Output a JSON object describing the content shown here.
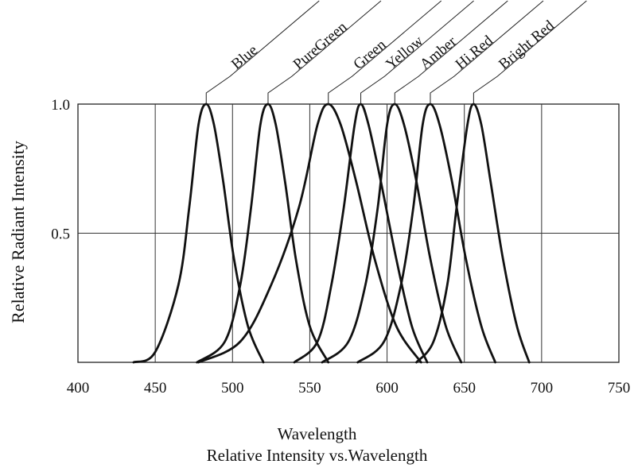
{
  "chart_data": {
    "type": "line",
    "xlabel": "Wavelength",
    "subtitle": "Relative Intensity vs.Wavelength",
    "ylabel": "Relative Radiant Intensity",
    "xlim": [
      400,
      750
    ],
    "ylim": [
      0,
      1.0
    ],
    "x_ticks": [
      400,
      450,
      500,
      550,
      600,
      650,
      700,
      750
    ],
    "y_ticks": [
      0.5,
      1.0
    ],
    "y_tick_labels": [
      "0.5",
      "1.0"
    ],
    "grid": true,
    "series": [
      {
        "name": "Blue",
        "peak": 483,
        "x": [
          436,
          450,
          465,
          472,
          478,
          483,
          488,
          494,
          501,
          510,
          520
        ],
        "y": [
          0,
          0.04,
          0.3,
          0.6,
          0.92,
          1.0,
          0.92,
          0.7,
          0.4,
          0.14,
          0
        ]
      },
      {
        "name": "PureGreen",
        "peak": 523,
        "x": [
          477,
          495,
          505,
          512,
          518,
          523,
          528,
          534,
          541,
          550,
          562
        ],
        "y": [
          0,
          0.08,
          0.3,
          0.6,
          0.92,
          1.0,
          0.92,
          0.7,
          0.4,
          0.14,
          0
        ]
      },
      {
        "name": "Green",
        "peak": 562,
        "x": [
          478,
          505,
          525,
          543,
          555,
          562,
          570,
          580,
          592,
          606,
          622
        ],
        "y": [
          0,
          0.08,
          0.3,
          0.6,
          0.92,
          1.0,
          0.92,
          0.7,
          0.4,
          0.14,
          0
        ]
      },
      {
        "name": "Yellow",
        "peak": 583,
        "x": [
          540,
          555,
          564,
          572,
          579,
          583,
          588,
          596,
          606,
          616,
          626
        ],
        "y": [
          0,
          0.08,
          0.3,
          0.6,
          0.92,
          1.0,
          0.92,
          0.7,
          0.4,
          0.14,
          0
        ]
      },
      {
        "name": "Amber",
        "peak": 605,
        "x": [
          558,
          575,
          586,
          594,
          600,
          605,
          611,
          619,
          628,
          638,
          648
        ],
        "y": [
          0,
          0.08,
          0.3,
          0.6,
          0.92,
          1.0,
          0.92,
          0.7,
          0.4,
          0.14,
          0
        ]
      },
      {
        "name": "Hi.Red",
        "peak": 628,
        "x": [
          581,
          598,
          609,
          617,
          623,
          628,
          634,
          642,
          651,
          661,
          670
        ],
        "y": [
          0,
          0.08,
          0.3,
          0.6,
          0.92,
          1.0,
          0.92,
          0.7,
          0.4,
          0.14,
          0
        ]
      },
      {
        "name": "Bright Red",
        "peak": 656,
        "x": [
          619,
          630,
          639,
          645,
          652,
          656,
          661,
          667,
          675,
          684,
          692
        ],
        "y": [
          0,
          0.08,
          0.3,
          0.6,
          0.92,
          1.0,
          0.92,
          0.7,
          0.4,
          0.14,
          0
        ]
      }
    ],
    "line_color": "#111111"
  }
}
